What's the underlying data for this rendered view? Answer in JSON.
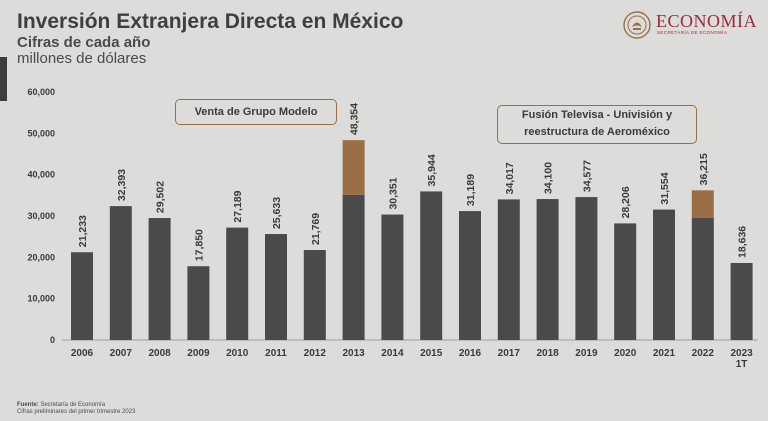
{
  "header": {
    "title": "Inversión Extranjera Directa en México",
    "subtitle": "Cifras de cada año",
    "unit": "millones de dólares"
  },
  "logo": {
    "text": "ECONOMÍA",
    "sub": "SECRETARÍA DE ECONOMÍA",
    "icon": "coat-of-arms-icon"
  },
  "footer": {
    "source_label": "Fuente:",
    "source_text": "Secretaría de Economía",
    "note": "Cifras preliminares del primer trimestre 2023"
  },
  "annotations": {
    "a1": "Venta de Grupo Modelo",
    "a2_line1": "Fusión Televisa - Univisión y",
    "a2_line2": "reestructura de Aeroméxico"
  },
  "colors": {
    "bar": "#4a4a4a",
    "highlight": "#9b6f45",
    "background": "#dcdcda",
    "brand": "#9e2a3a"
  },
  "chart_data": {
    "type": "bar",
    "title": "Inversión Extranjera Directa en México",
    "ylabel": "millones de dólares",
    "ylim": [
      0,
      60000
    ],
    "yticks": [
      "0",
      "10,000",
      "20,000",
      "30,000",
      "40,000",
      "50,000",
      "60,000"
    ],
    "categories": [
      "2006",
      "2007",
      "2008",
      "2009",
      "2010",
      "2011",
      "2012",
      "2013",
      "2014",
      "2015",
      "2016",
      "2017",
      "2018",
      "2019",
      "2020",
      "2021",
      "2022",
      "2023 1T"
    ],
    "values": [
      21233,
      32393,
      29502,
      17850,
      27189,
      25633,
      21769,
      48354,
      30351,
      35944,
      31189,
      34017,
      34100,
      34577,
      28206,
      31554,
      36215,
      18636
    ],
    "labels": [
      "21,233",
      "32,393",
      "29,502",
      "17,850",
      "27,189",
      "25,633",
      "21,769",
      "48,354",
      "30,351",
      "35,944",
      "31,189",
      "34,017",
      "34,100",
      "34,577",
      "28,206",
      "31,554",
      "36,215",
      "18,636"
    ],
    "highlighted_portion": [
      0,
      0,
      0,
      0,
      0,
      0,
      0,
      13200,
      0,
      0,
      0,
      0,
      0,
      0,
      0,
      0,
      6700,
      0
    ],
    "grid": false,
    "legend": "none"
  }
}
